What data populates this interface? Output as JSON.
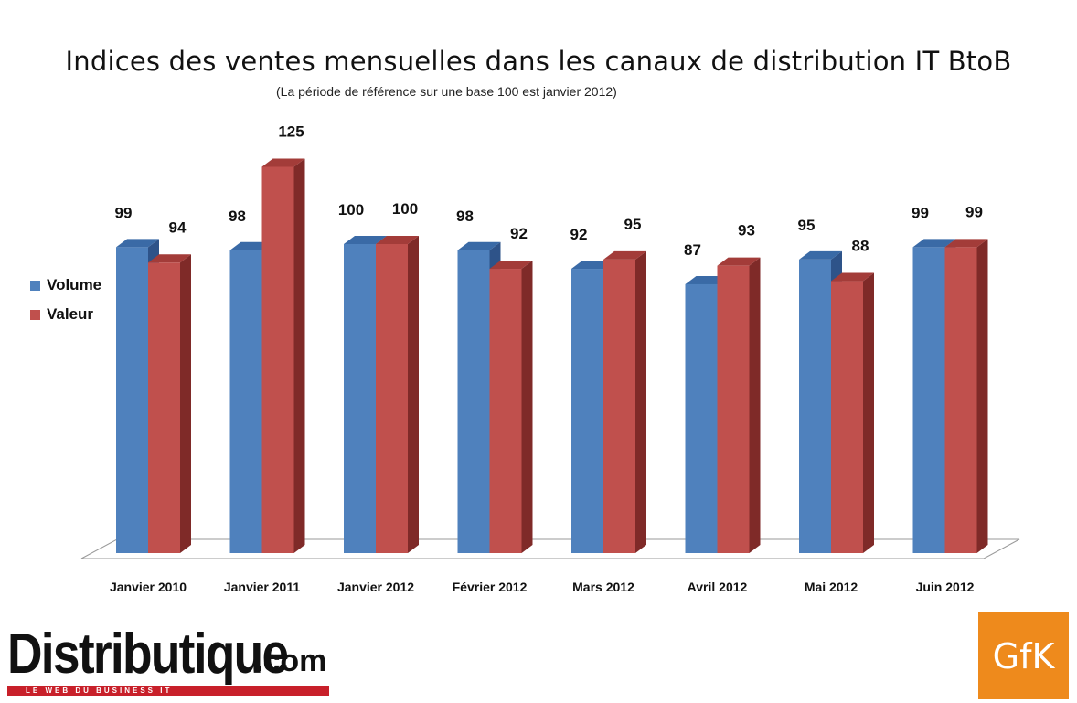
{
  "title": "Indices des ventes mensuelles dans les canaux de distribution IT BtoB",
  "subtitle": "(La période de référence sur une base 100 est janvier 2012)",
  "colors": {
    "volume_front": "#4f81bd",
    "volume_side": "#2e5389",
    "volume_top": "#3a6aa6",
    "valeur_front": "#c0504d",
    "valeur_side": "#7f2a28",
    "valeur_top": "#a33c39"
  },
  "chart_data": {
    "type": "bar",
    "categories": [
      "Janvier 2010",
      "Janvier 2011",
      "Janvier 2012",
      "Février 2012",
      "Mars 2012",
      "Avril 2012",
      "Mai 2012",
      "Juin 2012"
    ],
    "series": [
      {
        "name": "Volume",
        "values": [
          99,
          98,
          100,
          98,
          92,
          87,
          95,
          99
        ]
      },
      {
        "name": "Valeur",
        "values": [
          94,
          125,
          100,
          92,
          95,
          93,
          88,
          99
        ]
      }
    ],
    "ylim": [
      0,
      125
    ],
    "grid": false,
    "legend": "left",
    "data_labels": true,
    "style": "3d-clustered"
  },
  "logos": {
    "left_main": "Distributique",
    "left_suffix": ".com",
    "left_tagline": "LE WEB DU BUSINESS IT",
    "right": "GfK"
  }
}
